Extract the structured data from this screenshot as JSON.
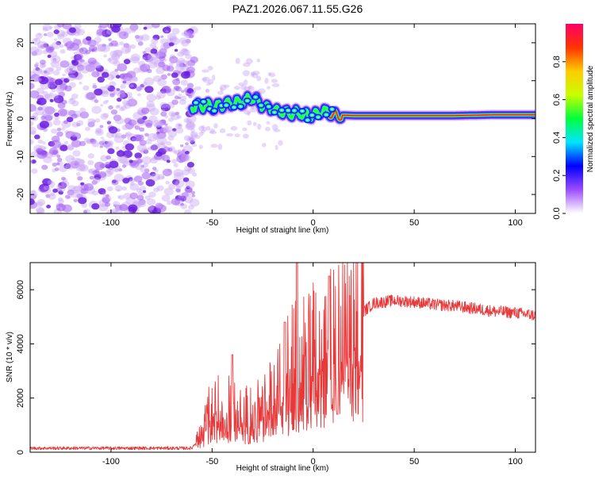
{
  "title": "PAZ1.2026.067.11.55.G26",
  "colors": {
    "background": "#ffffff",
    "axis": "#000000",
    "snr_line": "#e8393a",
    "noise_tint": "#b890f0"
  },
  "chart_data": [
    {
      "type": "heatmap",
      "name": "spectrogram",
      "xlabel": "Height of straight line (km)",
      "ylabel": "Frequency (Hz)",
      "xlim": [
        -140,
        110
      ],
      "ylim": [
        -25,
        25
      ],
      "xticks": [
        -100,
        -50,
        0,
        50,
        100
      ],
      "yticks": [
        -20,
        -10,
        0,
        10,
        20
      ],
      "ridge": {
        "description": "dominant spectral component (frequency vs height)",
        "x": [
          -60,
          -55,
          -50,
          -45,
          -40,
          -35,
          -30,
          -25,
          -20,
          -15,
          -10,
          -5,
          0,
          5,
          10,
          20,
          30,
          50,
          70,
          90,
          100,
          110
        ],
        "y": [
          3,
          3.5,
          3,
          3.5,
          4,
          4.5,
          5.5,
          3.5,
          2.5,
          1.5,
          1.5,
          1,
          1,
          2,
          1,
          0.8,
          0.8,
          0.8,
          0.8,
          1.0,
          1.0,
          1.0
        ]
      },
      "noise_region_x": [
        -140,
        -60
      ],
      "colorbar": {
        "label": "Normalized spectral amplitude",
        "range": [
          0.0,
          1.0
        ],
        "ticks": [
          "0.0",
          "0.2",
          "0.4",
          "0.6",
          "0.8"
        ],
        "tick_values": [
          0.0,
          0.2,
          0.4,
          0.6,
          0.8
        ],
        "colors": [
          "#ffffff",
          "#9c4dff",
          "#0000ff",
          "#00e5ff",
          "#00ff3c",
          "#c8ff00",
          "#ffcc00",
          "#ff3300",
          "#ff0066"
        ]
      }
    },
    {
      "type": "line",
      "name": "snr",
      "xlabel": "Height of straight line (km)",
      "ylabel": "SNR (10 * v/v)",
      "xlim": [
        -140,
        110
      ],
      "ylim": [
        0,
        7000
      ],
      "xticks": [
        -100,
        -50,
        0,
        50,
        100
      ],
      "yticks": [
        0,
        2000,
        4000,
        6000
      ],
      "envelope": {
        "x": [
          -140,
          -100,
          -60,
          -55,
          -50,
          -45,
          -40,
          -35,
          -30,
          -25,
          -20,
          -15,
          -10,
          -5,
          0,
          5,
          10,
          15,
          20,
          25,
          30,
          40,
          50,
          60,
          70,
          80,
          90,
          100,
          110
        ],
        "y": [
          150,
          150,
          150,
          700,
          1700,
          1700,
          1600,
          1400,
          1500,
          1700,
          2000,
          2600,
          3300,
          3300,
          3600,
          3800,
          4100,
          4400,
          4800,
          5200,
          5500,
          5600,
          5550,
          5450,
          5400,
          5300,
          5200,
          5150,
          5050
        ]
      },
      "spikes": [
        {
          "x": -8,
          "y": 7000
        },
        {
          "x": 8,
          "y": 6500
        },
        {
          "x": -14,
          "y": 4800
        },
        {
          "x": 12,
          "y": 1400
        },
        {
          "x": -40,
          "y": 3600
        }
      ]
    }
  ]
}
